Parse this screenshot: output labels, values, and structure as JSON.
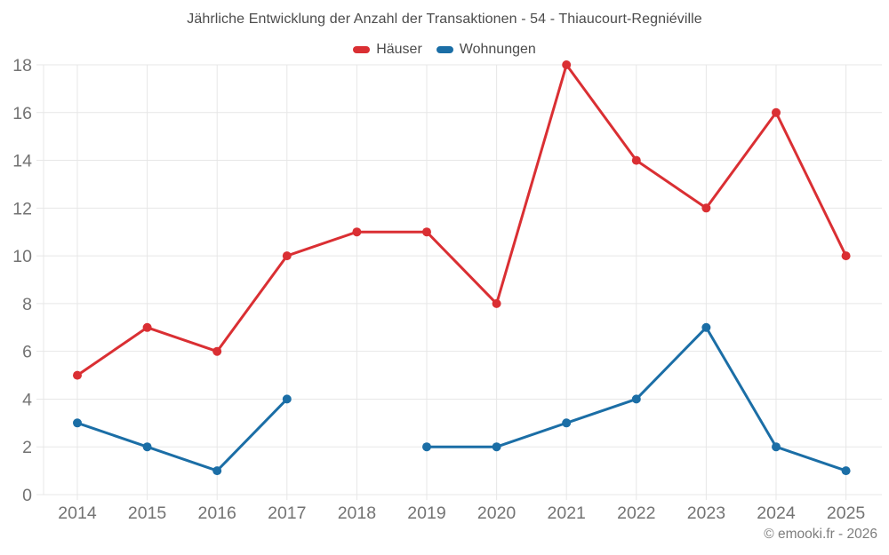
{
  "chart_data": {
    "type": "line",
    "title": "Jährliche Entwicklung der Anzahl der Transaktionen - 54 - Thiaucourt-Regniéville",
    "categories": [
      "2014",
      "2015",
      "2016",
      "2017",
      "2018",
      "2019",
      "2020",
      "2021",
      "2022",
      "2023",
      "2024",
      "2025"
    ],
    "series": [
      {
        "name": "Häuser",
        "color": "#da2f33",
        "values": [
          5,
          7,
          6,
          10,
          11,
          11,
          8,
          18,
          14,
          12,
          16,
          10
        ]
      },
      {
        "name": "Wohnungen",
        "color": "#1b6ea6",
        "values": [
          3,
          2,
          1,
          4,
          null,
          2,
          2,
          3,
          4,
          7,
          2,
          1
        ]
      }
    ],
    "ylim": [
      0,
      18
    ],
    "ytick_step": 2,
    "grid": true,
    "legend_position": "top",
    "xlabel": "",
    "ylabel": ""
  },
  "theme": {
    "grid_color": "#e7e7e7",
    "tick_label_color": "#737373",
    "title_color": "#4c4c4c",
    "footer_color": "#7d7d7d",
    "background": "#ffffff"
  },
  "footer": {
    "copyright": "© emooki.fr - 2026"
  }
}
